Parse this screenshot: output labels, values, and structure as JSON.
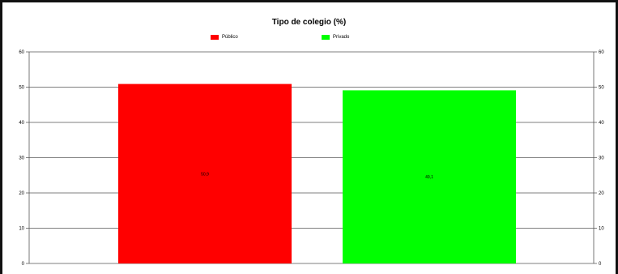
{
  "chart_data": {
    "type": "bar",
    "title": "Tipo de colegio (%)",
    "categories": [
      "Público",
      "Privado"
    ],
    "values": [
      50.9,
      49.1
    ],
    "data_labels": [
      "50,9",
      "49,1"
    ],
    "colors": [
      "#ff0000",
      "#00ff00"
    ],
    "ylim": [
      0,
      60
    ],
    "yticks": [
      0,
      10,
      20,
      30,
      40,
      50,
      60
    ],
    "grid": true,
    "legend": {
      "placement": "top",
      "entries": [
        {
          "label": "Público",
          "color": "#ff0000"
        },
        {
          "label": "Privado",
          "color": "#00ff00"
        }
      ]
    },
    "xlabel": "",
    "ylabel": ""
  }
}
